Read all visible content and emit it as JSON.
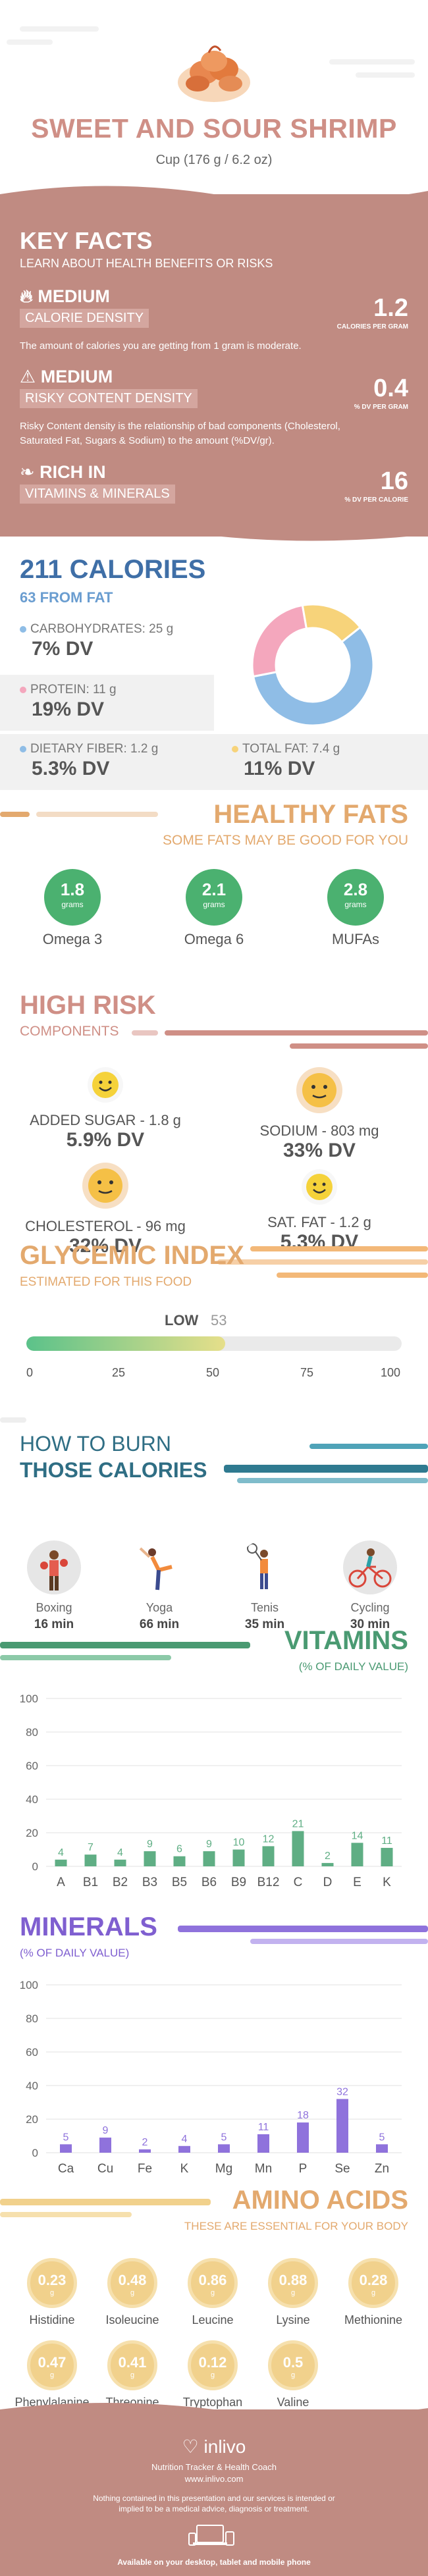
{
  "header": {
    "title": "SWEET AND SOUR SHRIMP",
    "serving": "Cup (176 g / 6.2 oz)",
    "food_icon": "shrimp-dish-icon"
  },
  "key_facts": {
    "title": "KEY FACTS",
    "subtitle": "LEARN ABOUT HEALTH BENEFITS OR RISKS",
    "items": [
      {
        "icon": "flame-icon",
        "level": "MEDIUM",
        "label": "CALORIE DENSITY",
        "value": "1.2",
        "unit": "CALORIES PER GRAM",
        "desc": "The amount of calories you are getting from 1 gram is moderate."
      },
      {
        "icon": "warning-icon",
        "level": "MEDIUM",
        "label": "RISKY CONTENT DENSITY",
        "value": "0.4",
        "unit": "% DV PER GRAM",
        "desc": "Risky Content density is the relationship of bad components (Cholesterol, Saturated Fat, Sugars & Sodium) to the amount (%DV/gr)."
      },
      {
        "icon": "leaf-icon",
        "level": "RICH IN",
        "label": "VITAMINS & MINERALS",
        "value": "16",
        "unit": "% DV PER CALORIE",
        "desc": ""
      }
    ]
  },
  "calories": {
    "title": "211 CALORIES",
    "from_fat": "63 FROM FAT",
    "carbs": {
      "label": "CARBOHYDRATES: 25 g",
      "dv": "7% DV",
      "color": "#8fbde6"
    },
    "protein": {
      "label": "PROTEIN: 11 g",
      "dv": "19% DV",
      "color": "#f4a7bd"
    },
    "fiber": {
      "label": "DIETARY FIBER: 1.2 g",
      "dv": "5.3% DV",
      "color": "#8fbde6"
    },
    "fat": {
      "label": "TOTAL FAT: 7.4 g",
      "dv": "11% DV",
      "color": "#f7d37a"
    },
    "donut": [
      {
        "name": "carbs",
        "value": 25,
        "color": "#8fbde6"
      },
      {
        "name": "protein",
        "value": 11,
        "color": "#f4a7bd"
      },
      {
        "name": "fat",
        "value": 7.4,
        "color": "#f7d37a"
      }
    ]
  },
  "healthy_fats": {
    "title": "HEALTHY FATS",
    "subtitle": "SOME FATS MAY BE GOOD FOR YOU",
    "items": [
      {
        "value": "1.8",
        "unit": "grams",
        "name": "Omega 3"
      },
      {
        "value": "2.1",
        "unit": "grams",
        "name": "Omega 6"
      },
      {
        "value": "2.8",
        "unit": "grams",
        "name": "MUFAs"
      }
    ]
  },
  "high_risk": {
    "title": "HIGH RISK",
    "subtitle": "COMPONENTS",
    "items": [
      {
        "label": "ADDED SUGAR - 1.8 g",
        "dv": "5.9% DV",
        "icon": "smiley-face-icon"
      },
      {
        "label": "SODIUM - 803 mg",
        "dv": "33% DV",
        "icon": "neutral-face-icon"
      },
      {
        "label": "CHOLESTEROL - 96 mg",
        "dv": "32% DV",
        "icon": "neutral-face-icon"
      },
      {
        "label": "SAT. FAT - 1.2 g",
        "dv": "5.3% DV",
        "icon": "smiley-face-icon"
      }
    ]
  },
  "glycemic": {
    "title": "GLYCEMIC INDEX",
    "subtitle": "ESTIMATED FOR THIS FOOD",
    "level": "LOW",
    "value": 53,
    "ticks": [
      "0",
      "25",
      "50",
      "75",
      "100"
    ]
  },
  "burn": {
    "title1": "HOW TO BURN",
    "title2": "THOSE CALORIES",
    "items": [
      {
        "name": "Boxing",
        "time": "16 min",
        "icon": "boxing-icon"
      },
      {
        "name": "Yoga",
        "time": "66 min",
        "icon": "yoga-icon"
      },
      {
        "name": "Tenis",
        "time": "35 min",
        "icon": "tennis-icon"
      },
      {
        "name": "Cycling",
        "time": "30 min",
        "icon": "cycling-icon"
      }
    ]
  },
  "vitamins": {
    "title": "VITAMINS",
    "subtitle": "(% OF DAILY VALUE)",
    "color": "#5fae84"
  },
  "minerals": {
    "title": "MINERALS",
    "subtitle": "(% OF DAILY VALUE)",
    "color": "#8f72dc"
  },
  "chart_data": [
    {
      "type": "bar",
      "title": "VITAMINS",
      "subtitle": "(% OF DAILY VALUE)",
      "categories": [
        "A",
        "B1",
        "B2",
        "B3",
        "B5",
        "B6",
        "B9",
        "B12",
        "C",
        "D",
        "E",
        "K"
      ],
      "values": [
        4,
        7,
        4,
        9,
        6,
        9,
        10,
        12,
        21,
        2,
        14,
        11
      ],
      "yticks": [
        0,
        20,
        40,
        60,
        80,
        100
      ],
      "ylim": [
        0,
        100
      ],
      "grid": true
    },
    {
      "type": "bar",
      "title": "MINERALS",
      "subtitle": "(% OF DAILY VALUE)",
      "categories": [
        "Ca",
        "Cu",
        "Fe",
        "K",
        "Mg",
        "Mn",
        "P",
        "Se",
        "Zn"
      ],
      "values": [
        5,
        9,
        2,
        4,
        5,
        11,
        18,
        32,
        5
      ],
      "yticks": [
        0,
        20,
        40,
        60,
        80,
        100
      ],
      "ylim": [
        0,
        100
      ],
      "grid": true
    }
  ],
  "amino": {
    "title": "AMINO ACIDS",
    "subtitle": "THESE ARE ESSENTIAL FOR YOUR BODY",
    "items": [
      {
        "value": "0.23",
        "unit": "g",
        "name": "Histidine"
      },
      {
        "value": "0.48",
        "unit": "g",
        "name": "Isoleucine"
      },
      {
        "value": "0.86",
        "unit": "g",
        "name": "Leucine"
      },
      {
        "value": "0.88",
        "unit": "g",
        "name": "Lysine"
      },
      {
        "value": "0.28",
        "unit": "g",
        "name": "Methionine"
      },
      {
        "value": "0.47",
        "unit": "g",
        "name": "Phenylalanine"
      },
      {
        "value": "0.41",
        "unit": "g",
        "name": "Threonine"
      },
      {
        "value": "0.12",
        "unit": "g",
        "name": "Tryptophan"
      },
      {
        "value": "0.5",
        "unit": "g",
        "name": "Valine"
      }
    ]
  },
  "footer": {
    "brand": "inlivo",
    "tagline": "Nutrition Tracker & Health Coach",
    "url": "www.inlivo.com",
    "disclaimer": "Nothing contained in this presentation and our services is intended or implied to be a medical advice, diagnosis or treatment.",
    "available": "Available on your desktop, tablet and mobile phone"
  }
}
